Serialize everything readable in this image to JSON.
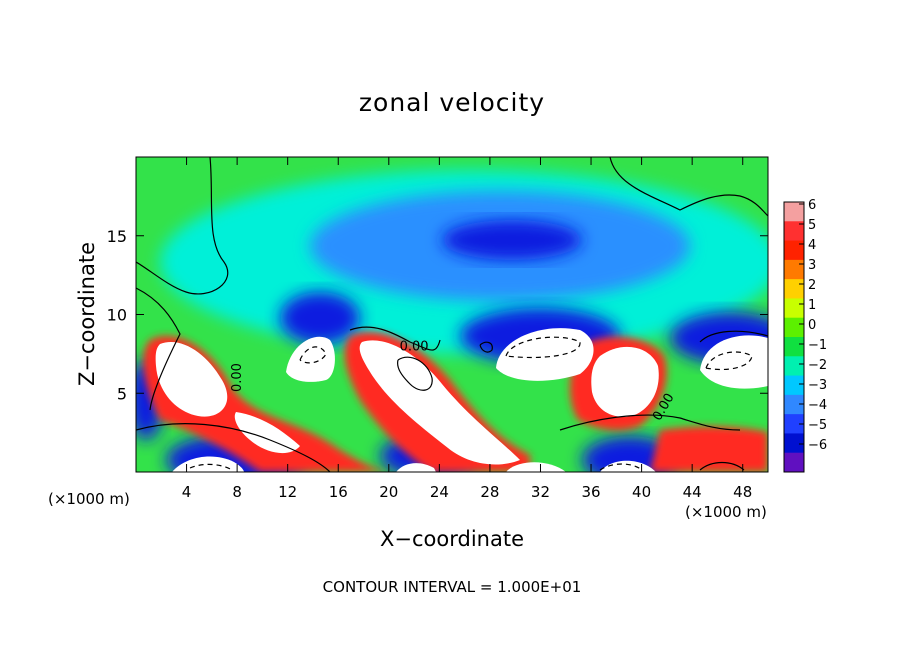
{
  "chart_data": {
    "type": "heatmap",
    "title": "zonal velocity",
    "xlabel": "X−coordinate",
    "ylabel": "Z−coordinate",
    "x_unit_left": "(×1000 m)",
    "x_unit_right": "(×1000 m)",
    "footnote": "CONTOUR INTERVAL = 1.000E+01",
    "xlim": [
      0,
      50
    ],
    "ylim": [
      0,
      20
    ],
    "x_ticks": [
      4,
      8,
      12,
      16,
      20,
      24,
      28,
      32,
      36,
      40,
      44,
      48
    ],
    "y_ticks": [
      5,
      10,
      15
    ],
    "contour_labels": [
      {
        "text": "0.00",
        "x": 8.3,
        "y": 6.0,
        "rotate": -90
      },
      {
        "text": "0.00",
        "x": 22.0,
        "y": 7.7,
        "rotate": 0
      },
      {
        "text": "0.00",
        "x": 42.0,
        "y": 4.0,
        "rotate": -60
      }
    ],
    "colorbar": {
      "ticks": [
        "6",
        "5",
        "4",
        "3",
        "2",
        "1",
        "0",
        "−1",
        "−2",
        "−3",
        "−4",
        "−5",
        "−6"
      ],
      "colors": [
        "#f4a0a0",
        "#ff3030",
        "#ff2200",
        "#ff7a00",
        "#ffd000",
        "#c8ff00",
        "#5cf000",
        "#10e040",
        "#00f0b0",
        "#00c8ff",
        "#3088ff",
        "#2040ff",
        "#0010d0",
        "#6010c0"
      ]
    },
    "palette": {
      "background": "#33e24a",
      "deep_negative": "#0a1ee0",
      "negative": "#2a90ff",
      "light_negative": "#00f0d8",
      "positive": "#ff2a20",
      "saturated": "#ffffff"
    }
  }
}
